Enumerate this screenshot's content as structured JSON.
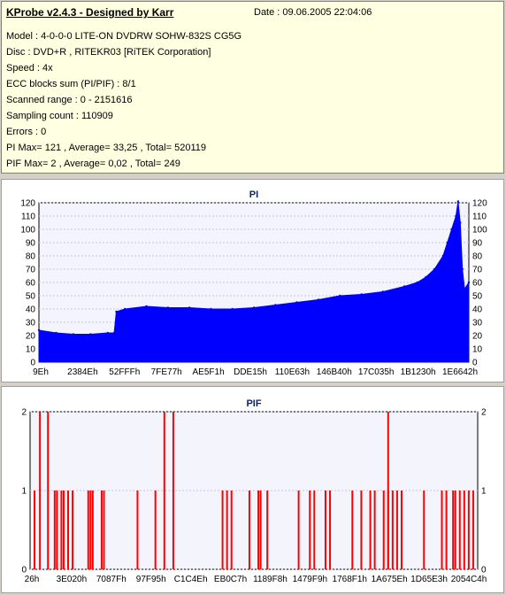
{
  "info": {
    "title": "KProbe v2.4.3 - Designed by Karr",
    "date": "Date : 09.06.2005 22:04:06",
    "lines": [
      "Model : 4-0-0-0 LITE-ON DVDRW SOHW-832S  CG5G",
      "Disc : DVD+R , RITEKR03 [RiTEK Corporation]",
      "Speed : 4x",
      "ECC blocks sum (PI/PIF) : 8/1",
      "Scanned range : 0 - 2151616",
      "Sampling count : 110909",
      "Errors : 0",
      "PI Max= 121 , Average= 33,25 , Total= 520119",
      "PIF Max= 2 , Average= 0,02 , Total= 249"
    ]
  },
  "chart_data": [
    {
      "type": "area",
      "title": "PI",
      "color": "#0000ff",
      "ylim": [
        0,
        120
      ],
      "yticks": [
        0,
        10,
        20,
        30,
        40,
        50,
        60,
        70,
        80,
        90,
        100,
        110,
        120
      ],
      "xticks": [
        "9Eh",
        "2384Eh",
        "52FFFh",
        "7FE77h",
        "AE5F1h",
        "DDE15h",
        "110E63h",
        "146B40h",
        "17C035h",
        "1B1230h",
        "1E6642h"
      ],
      "x_range": [
        0,
        1
      ],
      "x": [
        0,
        0.04,
        0.08,
        0.12,
        0.16,
        0.175,
        0.18,
        0.2,
        0.25,
        0.3,
        0.35,
        0.4,
        0.45,
        0.5,
        0.55,
        0.6,
        0.65,
        0.7,
        0.75,
        0.8,
        0.85,
        0.88,
        0.9,
        0.92,
        0.94,
        0.95,
        0.96,
        0.97,
        0.975,
        0.98,
        0.985,
        0.99,
        1.0
      ],
      "values": [
        24,
        22,
        21,
        21,
        22,
        22,
        38,
        40,
        42,
        41,
        41,
        40,
        40,
        41,
        43,
        45,
        47,
        50,
        51,
        53,
        57,
        60,
        64,
        70,
        80,
        90,
        100,
        110,
        121,
        105,
        70,
        55,
        60
      ]
    },
    {
      "type": "bar",
      "title": "PIF",
      "color": "#ff0000",
      "ylim": [
        0,
        2
      ],
      "yticks": [
        0,
        1,
        2
      ],
      "xticks": [
        "26h",
        "3E020h",
        "7087Fh",
        "97F95h",
        "C1C4Eh",
        "EB0C7h",
        "1189F8h",
        "1479F9h",
        "1768F1h",
        "1A675Eh",
        "1D65E3h",
        "2054C4h"
      ],
      "x_range": [
        0,
        1
      ],
      "x": [
        0.01,
        0.022,
        0.04,
        0.055,
        0.06,
        0.07,
        0.075,
        0.085,
        0.095,
        0.13,
        0.135,
        0.14,
        0.16,
        0.165,
        0.24,
        0.28,
        0.3,
        0.32,
        0.43,
        0.44,
        0.45,
        0.49,
        0.51,
        0.515,
        0.53,
        0.6,
        0.625,
        0.635,
        0.66,
        0.67,
        0.72,
        0.74,
        0.76,
        0.77,
        0.79,
        0.8,
        0.8,
        0.81,
        0.82,
        0.83,
        0.88,
        0.92,
        0.93,
        0.945,
        0.95,
        0.96,
        0.97,
        0.98,
        0.99
      ],
      "values": [
        1,
        2,
        2,
        1,
        1,
        1,
        1,
        1,
        1,
        1,
        1,
        1,
        1,
        1,
        1,
        1,
        2,
        2,
        1,
        1,
        1,
        1,
        1,
        1,
        1,
        1,
        1,
        1,
        1,
        1,
        1,
        1,
        1,
        1,
        1,
        1,
        2,
        1,
        1,
        1,
        1,
        1,
        1,
        1,
        1,
        1,
        1,
        1,
        1
      ]
    }
  ]
}
